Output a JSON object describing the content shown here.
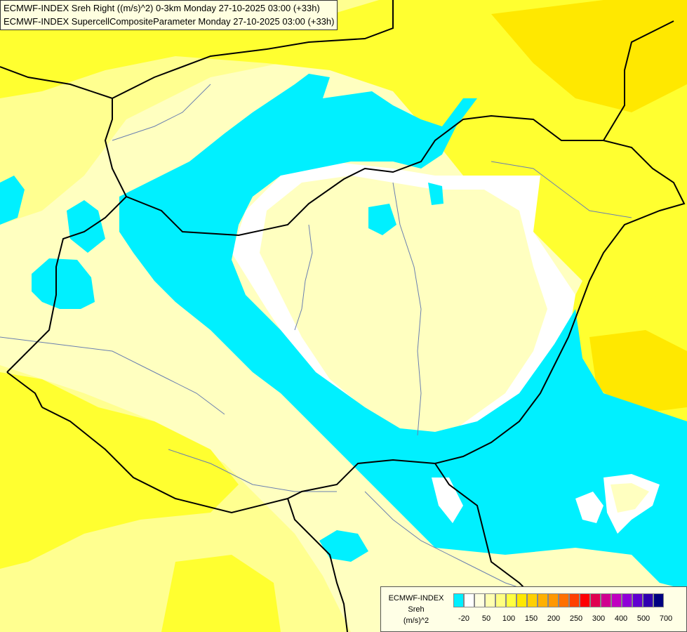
{
  "title": {
    "line1": "ECMWF-INDEX Sreh Right ((m/s)^2) 0-3km Monday 27-10-2025 03:00 (+33h)",
    "line2": "ECMWF-INDEX SupercellCompositeParameter Monday 27-10-2025 03:00 (+33h)"
  },
  "legend": {
    "source": "ECMWF-INDEX",
    "variable": "Sreh",
    "unit": "(m/s)^2",
    "colors": [
      "#00f0ff",
      "#ffffff",
      "#ffffe0",
      "#ffffb0",
      "#ffff80",
      "#ffff40",
      "#ffe800",
      "#ffd000",
      "#ffb000",
      "#ff9800",
      "#ff7000",
      "#ff4000",
      "#ff0000",
      "#e00050",
      "#d00090",
      "#c000c0",
      "#9000d8",
      "#6000d0",
      "#3000b0",
      "#000080"
    ],
    "ticks": [
      "-20",
      "50",
      "100",
      "150",
      "200",
      "250",
      "300",
      "400",
      "500",
      "700"
    ]
  },
  "colors": {
    "cyan": "#00f0ff",
    "white": "#ffffff",
    "pale": "#ffffc0",
    "light_yellow": "#ffff90",
    "yellow": "#ffff30",
    "deep_yellow": "#ffe800",
    "border": "#000000",
    "river": "#6a7fb0"
  }
}
